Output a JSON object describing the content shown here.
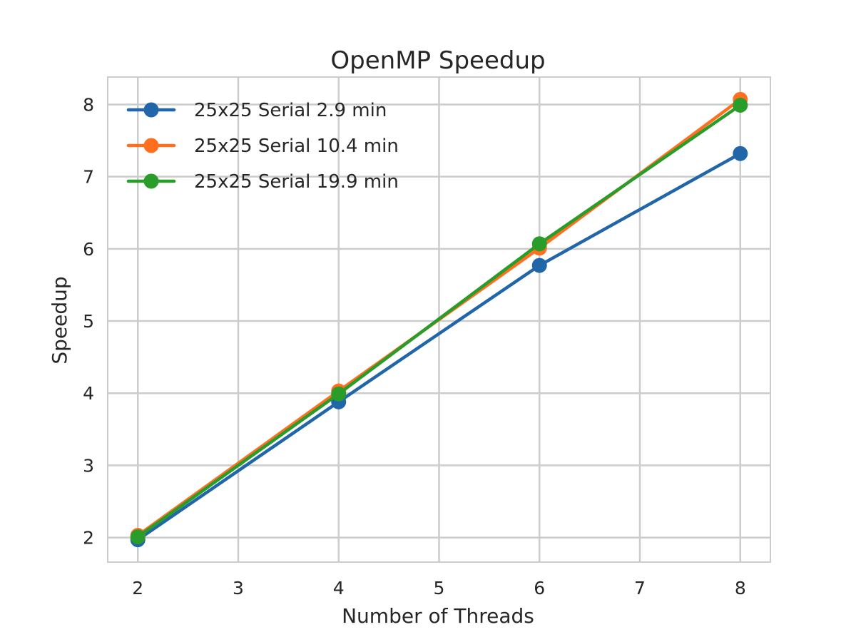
{
  "chart_data": {
    "type": "line",
    "title": "OpenMP Speedup",
    "xlabel": "Number of Threads",
    "ylabel": "Speedup",
    "x": [
      2,
      4,
      6,
      8
    ],
    "xlim": [
      1.7,
      8.3
    ],
    "ylim": [
      1.66,
      8.38
    ],
    "xticks": [
      2,
      3,
      4,
      5,
      6,
      7,
      8
    ],
    "yticks": [
      2,
      3,
      4,
      5,
      6,
      7,
      8
    ],
    "grid": true,
    "legend_position": "upper-left",
    "series": [
      {
        "name": "25x25 Serial 2.9 min",
        "color": "#2166a8",
        "values": [
          1.97,
          3.88,
          5.77,
          7.32
        ]
      },
      {
        "name": "25x25 Serial 10.4 min",
        "color": "#ff6f1f",
        "values": [
          2.03,
          4.03,
          6.01,
          8.07
        ]
      },
      {
        "name": "25x25 Serial 19.9 min",
        "color": "#2a9c2a",
        "values": [
          2.01,
          3.99,
          6.07,
          7.99
        ]
      }
    ]
  }
}
